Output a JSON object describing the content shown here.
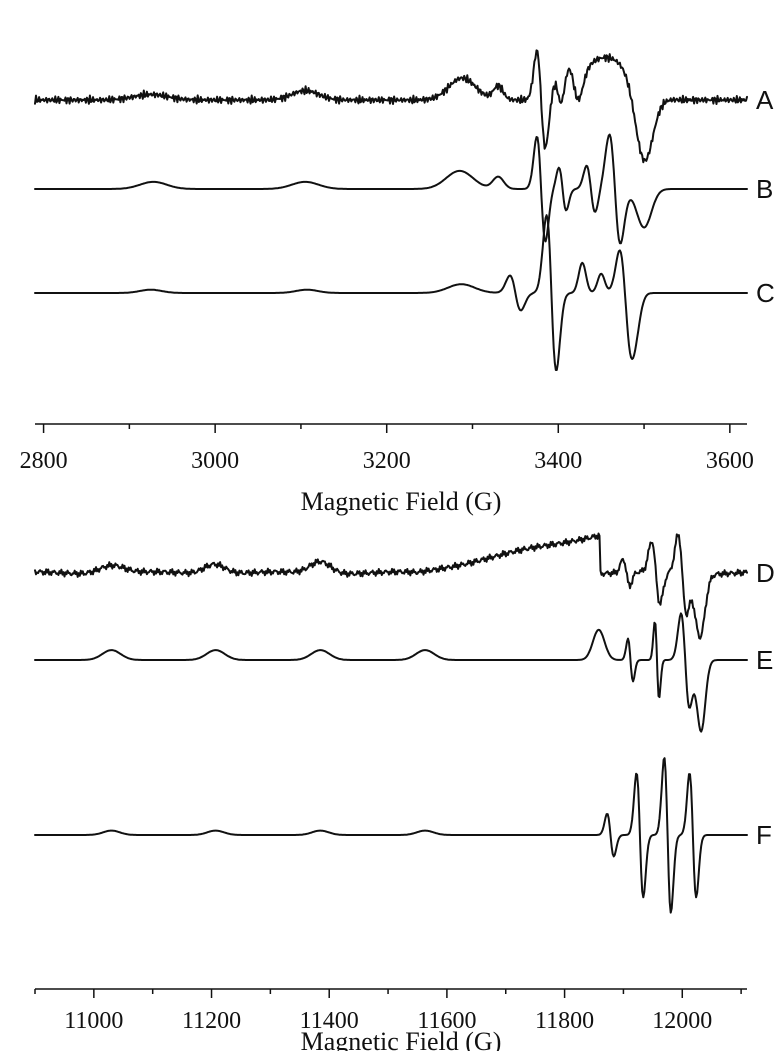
{
  "chart_data": [
    {
      "type": "line",
      "title": "",
      "xlabel": "Magnetic Field (G)",
      "ylabel": "",
      "xlim": [
        2790,
        3620
      ],
      "xticks": [
        2800,
        3000,
        3200,
        3400,
        3600
      ],
      "grid": false,
      "series": [
        {
          "name": "A",
          "noise": true,
          "components": [
            {
              "x0": 2790,
              "x1": 2800,
              "y": 0
            },
            {
              "type": "bump",
              "x": 2925,
              "amp": 0.1,
              "w": 28
            },
            {
              "type": "bump",
              "x": 3105,
              "amp": 0.17,
              "w": 22
            },
            {
              "type": "bump",
              "x": 3288,
              "amp": 0.4,
              "w": 22
            },
            {
              "type": "bump",
              "x": 3330,
              "amp": 0.25,
              "w": 8
            },
            {
              "type": "deriv",
              "x": 3380,
              "amp": 1.25,
              "w": 7
            },
            {
              "type": "deriv",
              "x": 3400,
              "amp": 0.35,
              "w": 6
            },
            {
              "type": "deriv",
              "x": 3418,
              "amp": 0.55,
              "w": 9
            },
            {
              "type": "plateau",
              "x0": 3425,
              "x1": 3485,
              "amp": 0.85,
              "edge": 10
            },
            {
              "type": "dip",
              "x": 3500,
              "amp": 1.25,
              "w": 14
            }
          ]
        },
        {
          "name": "B",
          "noise": false,
          "components": [
            {
              "type": "bump",
              "x": 2928,
              "amp": 0.13,
              "w": 22
            },
            {
              "type": "bump",
              "x": 3105,
              "amp": 0.13,
              "w": 22
            },
            {
              "type": "bump",
              "x": 3285,
              "amp": 0.33,
              "w": 22
            },
            {
              "type": "bump",
              "x": 3330,
              "amp": 0.22,
              "w": 9
            },
            {
              "type": "deriv",
              "x": 3380,
              "amp": 1.35,
              "w": 7
            },
            {
              "type": "deriv",
              "x": 3405,
              "amp": 0.55,
              "w": 6
            },
            {
              "type": "deriv",
              "x": 3438,
              "amp": 0.6,
              "w": 7
            },
            {
              "type": "deriv",
              "x": 3466,
              "amp": 1.4,
              "w": 9
            },
            {
              "type": "dip",
              "x": 3500,
              "amp": 0.7,
              "w": 12
            }
          ]
        },
        {
          "name": "C",
          "noise": false,
          "components": [
            {
              "type": "bump",
              "x": 2925,
              "amp": 0.06,
              "w": 18
            },
            {
              "type": "bump",
              "x": 3107,
              "amp": 0.06,
              "w": 18
            },
            {
              "type": "bump",
              "x": 3287,
              "amp": 0.16,
              "w": 22
            },
            {
              "type": "deriv",
              "x": 3350,
              "amp": 0.45,
              "w": 9
            },
            {
              "type": "deriv",
              "x": 3392,
              "amp": 2.0,
              "w": 8
            },
            {
              "type": "bump",
              "x": 3428,
              "amp": 0.55,
              "w": 6
            },
            {
              "type": "bump",
              "x": 3450,
              "amp": 0.35,
              "w": 6
            },
            {
              "type": "deriv",
              "x": 3478,
              "amp": 1.1,
              "w": 9
            },
            {
              "type": "dip",
              "x": 3490,
              "amp": 0.6,
              "w": 8
            }
          ]
        }
      ]
    },
    {
      "type": "line",
      "title": "",
      "xlabel": "Magnetic Field (G)",
      "ylabel": "",
      "xlim": [
        10900,
        12110
      ],
      "xticks": [
        11000,
        11200,
        11400,
        11600,
        11800,
        12000
      ],
      "grid": false,
      "series": [
        {
          "name": "D",
          "noise": true,
          "components": [
            {
              "type": "bump",
              "x": 11030,
              "amp": 0.15,
              "w": 30
            },
            {
              "type": "bump",
              "x": 11205,
              "amp": 0.18,
              "w": 25
            },
            {
              "type": "bump",
              "x": 11385,
              "amp": 0.22,
              "w": 25
            },
            {
              "type": "ramp",
              "x0": 11550,
              "x1": 11860,
              "amp": 0.7
            },
            {
              "type": "deriv",
              "x": 11905,
              "amp": 0.35,
              "w": 8
            },
            {
              "type": "deriv",
              "x": 11955,
              "amp": 0.8,
              "w": 10
            },
            {
              "type": "deriv",
              "x": 12000,
              "amp": 1.0,
              "w": 10
            },
            {
              "type": "dip",
              "x": 12030,
              "amp": 1.15,
              "w": 12
            }
          ]
        },
        {
          "name": "E",
          "noise": false,
          "components": [
            {
              "type": "bump",
              "x": 11030,
              "amp": 0.18,
              "w": 22
            },
            {
              "type": "bump",
              "x": 11207,
              "amp": 0.18,
              "w": 22
            },
            {
              "type": "bump",
              "x": 11385,
              "amp": 0.18,
              "w": 22
            },
            {
              "type": "bump",
              "x": 11563,
              "amp": 0.18,
              "w": 22
            },
            {
              "type": "bump",
              "x": 11858,
              "amp": 0.55,
              "w": 14
            },
            {
              "type": "deriv",
              "x": 11912,
              "amp": 0.55,
              "w": 6
            },
            {
              "type": "deriv",
              "x": 11957,
              "amp": 1.0,
              "w": 5
            },
            {
              "type": "deriv",
              "x": 12005,
              "amp": 1.2,
              "w": 10
            },
            {
              "type": "dip",
              "x": 12032,
              "amp": 1.3,
              "w": 10
            }
          ]
        },
        {
          "name": "F",
          "noise": false,
          "components": [
            {
              "type": "bump",
              "x": 11030,
              "amp": 0.08,
              "w": 20
            },
            {
              "type": "bump",
              "x": 11207,
              "amp": 0.08,
              "w": 20
            },
            {
              "type": "bump",
              "x": 11385,
              "amp": 0.08,
              "w": 20
            },
            {
              "type": "bump",
              "x": 11563,
              "amp": 0.08,
              "w": 20
            },
            {
              "type": "deriv",
              "x": 11878,
              "amp": 0.55,
              "w": 8
            },
            {
              "type": "deriv",
              "x": 11928,
              "amp": 1.6,
              "w": 8
            },
            {
              "type": "deriv",
              "x": 11975,
              "amp": 2.0,
              "w": 8
            },
            {
              "type": "deriv",
              "x": 12018,
              "amp": 1.6,
              "w": 8
            }
          ]
        }
      ]
    }
  ]
}
